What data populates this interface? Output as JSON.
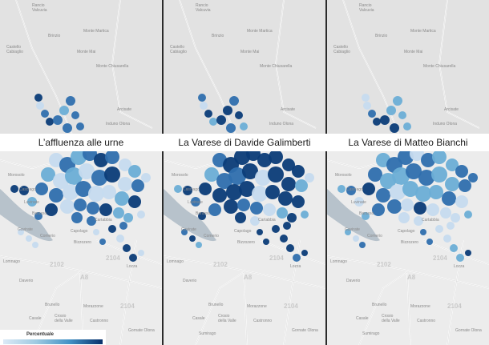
{
  "panels": [
    {
      "title": "L’affluenza alle urne"
    },
    {
      "title": "La Varese di Davide Galimberti"
    },
    {
      "title": "La Varese di Matteo Bianchi"
    }
  ],
  "places": [
    {
      "name": "Rancio\nValcuvia",
      "pos": "top-left"
    },
    {
      "name": "Brinzio",
      "pos": "top"
    },
    {
      "name": "Monte Martica",
      "pos": "top"
    },
    {
      "name": "Castello\nCabiaglio",
      "pos": "upper-left"
    },
    {
      "name": "Monte Mai",
      "pos": "upper-mid"
    },
    {
      "name": "Monte Chiusarella",
      "pos": "upper-right"
    },
    {
      "name": "Arcisate",
      "pos": "right"
    },
    {
      "name": "Induno Olona",
      "pos": "right"
    },
    {
      "name": "Morosolo",
      "pos": "mid-left"
    },
    {
      "name": "Casciago",
      "pos": "mid-left"
    },
    {
      "name": "Luvinate",
      "pos": "mid-left"
    },
    {
      "name": "Barasso",
      "pos": "mid-left"
    },
    {
      "name": "Gavirate",
      "pos": "left"
    },
    {
      "name": "Comerio",
      "pos": "left"
    },
    {
      "name": "Cartabbia",
      "pos": "mid"
    },
    {
      "name": "Capolago",
      "pos": "mid"
    },
    {
      "name": "Bizzozero",
      "pos": "mid"
    },
    {
      "name": "Lomnago",
      "pos": "lower-left"
    },
    {
      "name": "Daverio",
      "pos": "lower-left"
    },
    {
      "name": "Lozza",
      "pos": "lower-right"
    },
    {
      "name": "Brunello",
      "pos": "bottom"
    },
    {
      "name": "Morazzone",
      "pos": "bottom"
    },
    {
      "name": "Casale",
      "pos": "bottom-left"
    },
    {
      "name": "Crosio\ndella Valle",
      "pos": "bottom"
    },
    {
      "name": "Castronno",
      "pos": "bottom"
    },
    {
      "name": "Gornate Olona",
      "pos": "bottom-right"
    },
    {
      "name": "Sumirago",
      "pos": "bottom-left"
    }
  ],
  "road_numbers": [
    "2102",
    "2104",
    "2104",
    "A8"
  ],
  "legend": {
    "title": "Percentuale"
  },
  "colors": {
    "light": "#c6dbef",
    "mid": "#6baed6",
    "dark": "#2f6fae",
    "darkest": "#0b3c78",
    "lake": "#b7c2cb",
    "land": "#ececec"
  }
}
